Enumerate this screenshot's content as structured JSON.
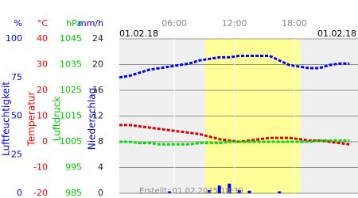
{
  "chart_data": {
    "type": "line",
    "x": [
      0.5,
      1.5,
      2.5,
      3.5,
      4.5,
      5.5,
      6.5,
      7.5,
      8.5,
      9.5,
      10.5,
      11.5,
      12.5,
      13.5,
      14.5,
      15.5,
      16.5,
      17.5,
      18.5,
      19.5,
      20.5,
      21.5,
      22.5,
      23.5
    ],
    "xlim": [
      0.5,
      24.2
    ],
    "xticks": [
      {
        "value": 6,
        "label": "06:00"
      },
      {
        "value": 12,
        "label": "12:00"
      },
      {
        "value": 18,
        "label": "18:00"
      }
    ],
    "date_left": "01.02.18",
    "date_right": "01.02.18",
    "highlight": [
      9.1,
      18.6
    ],
    "footer": "Erstellt: 01.02.2025 18:39",
    "axes": [
      {
        "label": "Luftfeuchtigkeit",
        "unit": "%",
        "color": "#0000ff",
        "ylim": [
          0,
          100
        ],
        "yticks": [
          100,
          75,
          50,
          25,
          0
        ]
      },
      {
        "label": "Temperatur",
        "unit": "°C",
        "color": "#ff0000",
        "ylim": [
          -20,
          40
        ],
        "yticks": [
          40,
          30,
          20,
          10,
          0,
          -10,
          -20
        ]
      },
      {
        "label": "Luftdruck",
        "unit": "hPa",
        "color": "#00cc00",
        "ylim": [
          985,
          1045
        ],
        "yticks": [
          1045,
          1035,
          1025,
          1015,
          1005,
          995,
          985
        ]
      },
      {
        "label": "Niederschlag",
        "unit": "mm/h",
        "color": "#0000ff",
        "ylim": [
          0,
          24
        ],
        "yticks": [
          24,
          20,
          16,
          12,
          8,
          4,
          0
        ]
      }
    ],
    "series": [
      {
        "type": "line",
        "axis": 0,
        "color": "#0000ff",
        "values": [
          75,
          76,
          78,
          80,
          81,
          82,
          83,
          84,
          86,
          87,
          88,
          88,
          89,
          89,
          89,
          89,
          86,
          83,
          82,
          81,
          81,
          83,
          84,
          84
        ]
      },
      {
        "type": "line",
        "axis": 1,
        "color": "#dd0000",
        "values": [
          6.5,
          6.5,
          6,
          5.5,
          5,
          4.5,
          4,
          3.5,
          3,
          2,
          1,
          0.5,
          0,
          0.5,
          1,
          1.5,
          1.5,
          1.5,
          1,
          0.5,
          0.5,
          0,
          -0.5,
          -1
        ]
      },
      {
        "type": "line",
        "axis": 2,
        "color": "#00dd00",
        "values": [
          1005,
          1005,
          1004.5,
          1004.5,
          1004,
          1004,
          1004,
          1004,
          1004.5,
          1004.5,
          1004.5,
          1005,
          1005,
          1005,
          1005,
          1005,
          1005,
          1005,
          1005,
          1005,
          1005.5,
          1005.5,
          1005.5,
          1005.5
        ]
      },
      {
        "type": "bar",
        "axis": 3,
        "color": "#0000ff",
        "values": [
          0,
          0,
          0,
          0,
          0,
          0.3,
          0,
          0,
          0,
          0.5,
          1.2,
          1.5,
          0.5,
          0.4,
          0,
          0,
          0.3,
          0,
          0,
          0,
          0,
          0,
          0,
          0
        ]
      }
    ]
  }
}
